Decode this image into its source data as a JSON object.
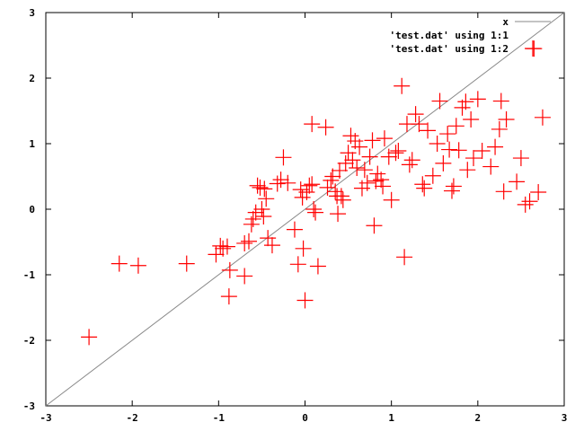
{
  "chart_data": {
    "type": "scatter",
    "xlim": [
      -3,
      3
    ],
    "ylim": [
      -3,
      3
    ],
    "x_ticks": [
      -3,
      -2,
      -1,
      0,
      1,
      2,
      3
    ],
    "y_ticks": [
      -3,
      -2,
      -1,
      0,
      1,
      2,
      3
    ],
    "grid": false,
    "legend_position": "top-right",
    "series": [
      {
        "name": "x",
        "kind": "line",
        "color": "#888888",
        "points": [
          [
            -3,
            -3
          ],
          [
            3,
            3
          ]
        ]
      },
      {
        "name": "'test.dat' using 1:1",
        "kind": "none",
        "color": "#000000",
        "points": []
      },
      {
        "name": "'test.dat' using 1:2",
        "kind": "points",
        "marker": "plus",
        "color": "#ff0000",
        "points": [
          [
            -2.5,
            -1.95
          ],
          [
            -2.15,
            -0.83
          ],
          [
            -1.93,
            -0.86
          ],
          [
            -1.37,
            -0.83
          ],
          [
            -1.03,
            -0.69
          ],
          [
            -0.98,
            -0.56
          ],
          [
            -0.95,
            -0.6
          ],
          [
            -0.9,
            -0.57
          ],
          [
            -0.87,
            -0.93
          ],
          [
            -0.88,
            -1.33
          ],
          [
            -0.7,
            -1.02
          ],
          [
            -0.7,
            -0.52
          ],
          [
            -0.65,
            -0.49
          ],
          [
            -0.62,
            -0.23
          ],
          [
            -0.6,
            -0.15
          ],
          [
            -0.57,
            -0.05
          ],
          [
            -0.55,
            0.36
          ],
          [
            -0.52,
            0.33
          ],
          [
            -0.5,
            0.0
          ],
          [
            -0.48,
            -0.11
          ],
          [
            -0.45,
            0.16
          ],
          [
            -0.47,
            0.31
          ],
          [
            -0.43,
            -0.44
          ],
          [
            -0.38,
            -0.55
          ],
          [
            -0.32,
            0.39
          ],
          [
            -0.28,
            0.45
          ],
          [
            -0.25,
            0.79
          ],
          [
            -0.2,
            0.4
          ],
          [
            -0.12,
            -0.31
          ],
          [
            -0.08,
            -0.84
          ],
          [
            -0.05,
            0.3
          ],
          [
            -0.03,
            0.18
          ],
          [
            -0.02,
            -0.6
          ],
          [
            0.0,
            -1.39
          ],
          [
            0.02,
            0.26
          ],
          [
            0.05,
            0.36
          ],
          [
            0.08,
            0.38
          ],
          [
            0.1,
            0.0
          ],
          [
            0.12,
            -0.05
          ],
          [
            0.08,
            1.3
          ],
          [
            0.15,
            -0.87
          ],
          [
            0.24,
            1.25
          ],
          [
            0.26,
            0.33
          ],
          [
            0.3,
            0.44
          ],
          [
            0.32,
            0.5
          ],
          [
            0.35,
            0.27
          ],
          [
            0.37,
            0.2
          ],
          [
            0.38,
            -0.07
          ],
          [
            0.4,
            0.59
          ],
          [
            0.42,
            0.2
          ],
          [
            0.44,
            0.14
          ],
          [
            0.47,
            0.7
          ],
          [
            0.5,
            0.86
          ],
          [
            0.53,
            1.12
          ],
          [
            0.55,
            0.75
          ],
          [
            0.58,
            1.04
          ],
          [
            0.6,
            0.63
          ],
          [
            0.63,
            0.95
          ],
          [
            0.66,
            0.32
          ],
          [
            0.69,
            0.6
          ],
          [
            0.72,
            0.4
          ],
          [
            0.75,
            0.8
          ],
          [
            0.78,
            1.05
          ],
          [
            0.8,
            -0.25
          ],
          [
            0.82,
            0.43
          ],
          [
            0.84,
            0.54
          ],
          [
            0.88,
            0.45
          ],
          [
            0.9,
            0.35
          ],
          [
            0.92,
            1.08
          ],
          [
            0.97,
            0.8
          ],
          [
            1.0,
            0.14
          ],
          [
            1.05,
            0.86
          ],
          [
            1.08,
            0.89
          ],
          [
            1.12,
            1.88
          ],
          [
            1.15,
            -0.73
          ],
          [
            1.18,
            1.3
          ],
          [
            1.21,
            0.68
          ],
          [
            1.24,
            0.75
          ],
          [
            1.28,
            1.45
          ],
          [
            1.32,
            1.3
          ],
          [
            1.36,
            0.38
          ],
          [
            1.38,
            0.32
          ],
          [
            1.42,
            1.2
          ],
          [
            1.48,
            0.51
          ],
          [
            1.53,
            1.0
          ],
          [
            1.56,
            1.65
          ],
          [
            1.6,
            0.7
          ],
          [
            1.65,
            1.15
          ],
          [
            1.67,
            0.91
          ],
          [
            1.7,
            0.28
          ],
          [
            1.72,
            0.35
          ],
          [
            1.75,
            1.27
          ],
          [
            1.78,
            0.9
          ],
          [
            1.82,
            1.55
          ],
          [
            1.86,
            1.64
          ],
          [
            1.88,
            0.6
          ],
          [
            1.92,
            1.37
          ],
          [
            1.95,
            0.78
          ],
          [
            2.0,
            1.68
          ],
          [
            2.05,
            0.89
          ],
          [
            2.15,
            0.65
          ],
          [
            2.2,
            0.95
          ],
          [
            2.25,
            1.22
          ],
          [
            2.27,
            1.65
          ],
          [
            2.3,
            0.27
          ],
          [
            2.33,
            1.37
          ],
          [
            2.45,
            0.42
          ],
          [
            2.5,
            0.78
          ],
          [
            2.55,
            0.07
          ],
          [
            2.6,
            0.12
          ],
          [
            2.65,
            2.45
          ],
          [
            2.7,
            0.26
          ],
          [
            2.75,
            1.4
          ]
        ]
      }
    ]
  }
}
